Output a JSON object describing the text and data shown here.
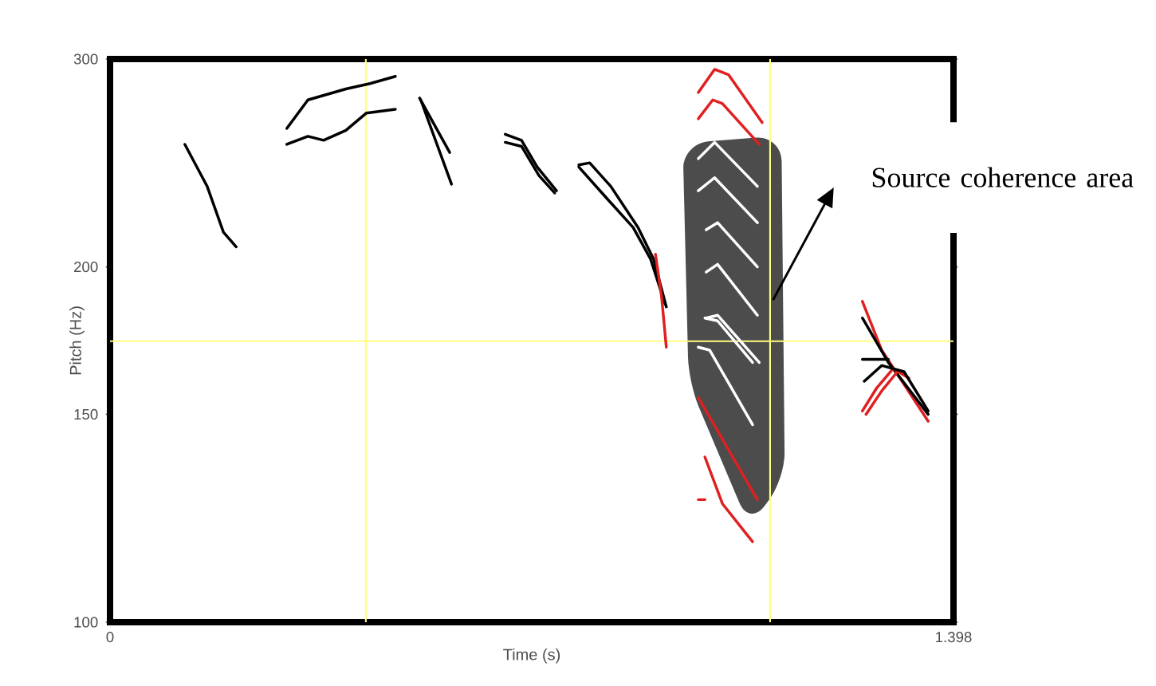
{
  "chart_data": {
    "type": "line",
    "xlabel": "Time (s)",
    "ylabel": "Pitch (Hz)",
    "xlim": [
      0,
      1.398
    ],
    "ylim": [
      100,
      300
    ],
    "xticks": [
      0,
      1.398
    ],
    "yticks": [
      100,
      150,
      200,
      300
    ],
    "log": "y",
    "grid": false,
    "series": [
      {
        "color": "#000000",
        "x": [
          0.124,
          0.161,
          0.188,
          0.209
        ],
        "values": [
          254,
          234,
          214,
          208
        ]
      },
      {
        "color": "#000000",
        "x": [
          0.293,
          0.328,
          0.391,
          0.431,
          0.473
        ],
        "values": [
          262,
          277,
          283,
          286,
          290
        ]
      },
      {
        "color": "#000000",
        "x": [
          0.293,
          0.328,
          0.354,
          0.391,
          0.425,
          0.473
        ],
        "values": [
          254,
          258,
          256,
          261,
          270,
          272
        ]
      },
      {
        "color": "#000000",
        "x": [
          0.513,
          0.563
        ],
        "values": [
          278,
          250
        ]
      },
      {
        "color": "#000000",
        "x": [
          0.515,
          0.566
        ],
        "values": [
          277,
          235
        ]
      },
      {
        "color": "#000000",
        "x": [
          0.655,
          0.682,
          0.708,
          0.74
        ],
        "values": [
          259,
          256,
          243,
          232
        ]
      },
      {
        "color": "#000000",
        "x": [
          0.655,
          0.682,
          0.711,
          0.737
        ],
        "values": [
          255,
          253,
          239,
          231
        ]
      },
      {
        "color": "#000000",
        "x": [
          0.777,
          0.795,
          0.83,
          0.875,
          0.901,
          0.922
        ],
        "values": [
          244,
          245,
          234,
          216,
          203,
          185
        ]
      },
      {
        "color": "#000000",
        "x": [
          0.777,
          0.822,
          0.867,
          0.896,
          0.92
        ],
        "values": [
          243,
          229,
          216,
          203,
          186
        ]
      },
      {
        "color": "#e02020",
        "x": [
          0.904,
          0.914,
          0.922
        ],
        "values": [
          205,
          189,
          171
        ]
      },
      {
        "color": "#e02020",
        "x": [
          0.975,
          1.002,
          1.025,
          1.081
        ],
        "values": [
          281,
          294,
          291,
          265
        ]
      },
      {
        "color": "#e02020",
        "x": [
          0.975,
          0.999,
          1.015,
          1.076
        ],
        "values": [
          267,
          277,
          275,
          254
        ]
      },
      {
        "color": "#ffffff",
        "x": [
          0.975,
          1.002,
          1.073
        ],
        "values": [
          247,
          255,
          234
        ]
      },
      {
        "color": "#ffffff",
        "x": [
          0.975,
          1.002,
          1.073
        ],
        "values": [
          232,
          238,
          218
        ]
      },
      {
        "color": "#ffffff",
        "x": [
          0.988,
          1.007,
          1.073
        ],
        "values": [
          215,
          218,
          200
        ]
      },
      {
        "color": "#ffffff",
        "x": [
          0.988,
          1.007,
          1.073
        ],
        "values": [
          198,
          201,
          182
        ]
      },
      {
        "color": "#ffffff",
        "x": [
          0.988,
          1.007,
          1.076
        ],
        "values": [
          181,
          182,
          166
        ]
      },
      {
        "color": "#ffffff",
        "x": [
          0.986,
          1.007,
          1.065
        ],
        "values": [
          181,
          180,
          166
        ]
      },
      {
        "color": "#ffffff",
        "x": [
          0.975,
          0.994,
          1.065
        ],
        "values": [
          171,
          170,
          147
        ]
      },
      {
        "color": "#e02020",
        "x": [
          0.975,
          1.025,
          1.073
        ],
        "values": [
          155,
          140,
          127
        ]
      },
      {
        "color": "#e02020",
        "x": [
          0.986,
          1.015,
          1.065
        ],
        "values": [
          138,
          126,
          117
        ]
      },
      {
        "color": "#e02020",
        "x": [
          0.975,
          0.986
        ],
        "values": [
          127,
          127
        ]
      },
      {
        "color": "#e02020",
        "x": [
          1.247,
          1.279,
          1.356
        ],
        "values": [
          187,
          170,
          148
        ]
      },
      {
        "color": "#000000",
        "x": [
          1.247,
          1.29,
          1.356
        ],
        "values": [
          181,
          166,
          150
        ]
      },
      {
        "color": "#000000",
        "x": [
          1.247,
          1.29
        ],
        "values": [
          167,
          167
        ]
      },
      {
        "color": "#e02020",
        "x": [
          1.247,
          1.271,
          1.298,
          1.324
        ],
        "values": [
          151,
          158,
          164,
          161
        ]
      },
      {
        "color": "#e02020",
        "x": [
          1.253,
          1.279,
          1.305
        ],
        "values": [
          150,
          157,
          163
        ]
      },
      {
        "color": "#000000",
        "x": [
          1.25,
          1.279,
          1.316,
          1.356
        ],
        "values": [
          160,
          165,
          163,
          151
        ]
      }
    ],
    "ref_lines": [
      {
        "axis": "x",
        "value": 0.424,
        "color": "#ffff80"
      },
      {
        "axis": "x",
        "value": 1.094,
        "color": "#ffff80"
      },
      {
        "axis": "y",
        "value": 173,
        "color": "#ffff80"
      }
    ],
    "annotations": [
      "Source coherence area"
    ]
  }
}
